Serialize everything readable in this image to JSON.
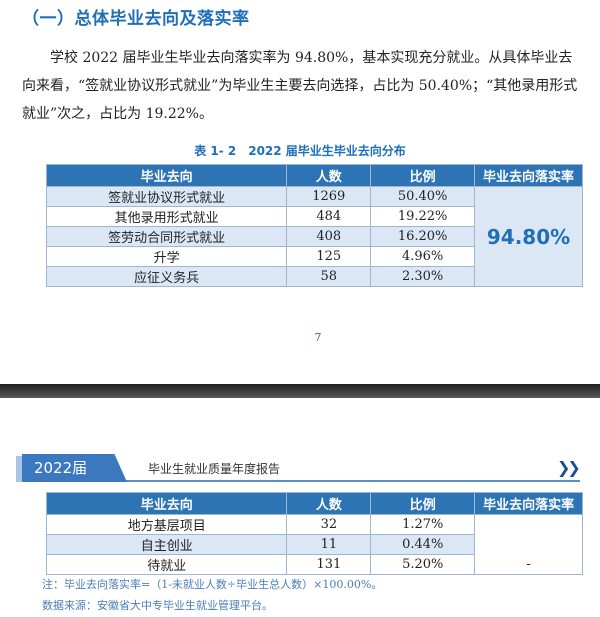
{
  "section_heading": "（一）总体毕业去向及落实率",
  "paragraph": "学校 2022 届毕业生毕业去向落实率为 94.80%，基本实现充分就业。从具体毕业去向来看，“签就业协议形式就业”为毕业生主要去向选择，占比为 50.40%；“其他录用形式就业”次之，占比为 19.22%。",
  "table_caption": "表 1- 2　2022 届毕业生毕业去向分布",
  "headers": [
    "毕业去向",
    "人数",
    "比例",
    "毕业去向落实率"
  ],
  "table1": {
    "rows": [
      {
        "dest": "签就业协议形式就业",
        "count": "1269",
        "pct": "50.40%"
      },
      {
        "dest": "其他录用形式就业",
        "count": "484",
        "pct": "19.22%"
      },
      {
        "dest": "签劳动合同形式就业",
        "count": "408",
        "pct": "16.20%"
      },
      {
        "dest": "升学",
        "count": "125",
        "pct": "4.96%"
      },
      {
        "dest": "应征义务兵",
        "count": "58",
        "pct": "2.30%"
      }
    ],
    "rate": "94.80%"
  },
  "page_number": "7",
  "band": {
    "year": "2022届",
    "title": "毕业生就业质量年度报告",
    "arrows": "❯❯",
    "accent": "#3b78c0"
  },
  "table2": {
    "rows": [
      {
        "dest": "地方基层项目",
        "count": "32",
        "pct": "1.27%"
      },
      {
        "dest": "自主创业",
        "count": "11",
        "pct": "0.44%"
      },
      {
        "dest": "待就业",
        "count": "131",
        "pct": "5.20%"
      }
    ],
    "rate": "-"
  },
  "note": "注：毕业去向落实率=（1-未就业人数÷毕业生总人数）×100.00%。",
  "source": "数据来源：安徽省大中专毕业生就业管理平台。",
  "colors": {
    "header_bg": "#2d74b5",
    "alt_row": "#dbe7f4",
    "accent": "#1f6fb8"
  }
}
